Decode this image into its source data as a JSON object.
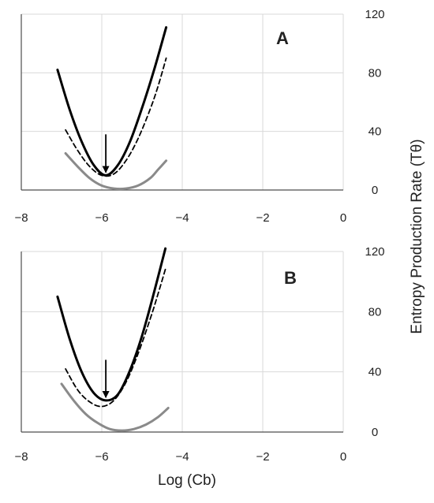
{
  "y_axis_label": "Entropy Production Rate (Tθ)",
  "x_axis_label": "Log (Cb)",
  "chart_data": [
    {
      "type": "line",
      "panel_label": "A",
      "xlabel": "Log (Cb)",
      "ylabel": "Entropy Production Rate (Tθ)",
      "xlim": [
        -8,
        0
      ],
      "ylim": [
        0,
        120
      ],
      "x_ticks": [
        "−8",
        "−6",
        "−4",
        "−2",
        "0"
      ],
      "y_ticks": [
        "0",
        "40",
        "80",
        "120"
      ],
      "y_axis_side": "right",
      "grid": true,
      "series": [
        {
          "style": "solid-black-thick",
          "color": "#000000",
          "x": [
            -7.1,
            -6.8,
            -6.5,
            -6.2,
            -5.9,
            -5.6,
            -5.3,
            -5.0,
            -4.7,
            -4.4
          ],
          "y": [
            82,
            55,
            33,
            17,
            10,
            17,
            33,
            56,
            82,
            111
          ]
        },
        {
          "style": "dashed-black",
          "color": "#000000",
          "x": [
            -6.9,
            -6.6,
            -6.3,
            -6.0,
            -5.7,
            -5.4,
            -5.1,
            -4.8,
            -4.6,
            -4.4
          ],
          "y": [
            41,
            27,
            16,
            10,
            11,
            20,
            35,
            55,
            71,
            90
          ]
        },
        {
          "style": "solid-gray",
          "color": "#8a8a8a",
          "x": [
            -6.9,
            -6.6,
            -6.3,
            -6.0,
            -5.7,
            -5.4,
            -5.1,
            -4.8,
            -4.6,
            -4.4
          ],
          "y": [
            25,
            16,
            8,
            3,
            1,
            1,
            3,
            8,
            14,
            20
          ]
        }
      ],
      "annotations": [
        {
          "type": "arrow",
          "x": -5.9,
          "y_from": 38,
          "y_to": 12
        }
      ]
    },
    {
      "type": "line",
      "panel_label": "B",
      "xlabel": "Log (Cb)",
      "ylabel": "Entropy Production Rate (Tθ)",
      "xlim": [
        -8,
        0
      ],
      "ylim": [
        0,
        120
      ],
      "x_ticks": [
        "−8",
        "−6",
        "−4",
        "−2",
        "0"
      ],
      "y_ticks": [
        "0",
        "40",
        "80",
        "120"
      ],
      "y_axis_side": "right",
      "grid": true,
      "series": [
        {
          "style": "solid-black-thick",
          "color": "#000000",
          "x": [
            -7.1,
            -6.8,
            -6.5,
            -6.2,
            -5.9,
            -5.6,
            -5.3,
            -5.0,
            -4.7,
            -4.42
          ],
          "y": [
            90,
            62,
            40,
            26,
            21,
            25,
            41,
            64,
            93,
            122
          ]
        },
        {
          "style": "dashed-black",
          "color": "#000000",
          "x": [
            -6.9,
            -6.6,
            -6.3,
            -6.0,
            -5.7,
            -5.4,
            -5.1,
            -4.8,
            -4.6,
            -4.4
          ],
          "y": [
            42,
            28,
            20,
            17,
            21,
            33,
            52,
            75,
            92,
            110
          ]
        },
        {
          "style": "solid-gray",
          "color": "#8a8a8a",
          "x": [
            -7.0,
            -6.7,
            -6.4,
            -6.1,
            -5.8,
            -5.5,
            -5.2,
            -4.9,
            -4.6,
            -4.35
          ],
          "y": [
            32,
            21,
            12,
            6,
            2,
            1,
            2,
            5,
            10,
            16
          ]
        }
      ],
      "annotations": [
        {
          "type": "arrow",
          "x": -5.9,
          "y_from": 48,
          "y_to": 23
        }
      ]
    }
  ]
}
